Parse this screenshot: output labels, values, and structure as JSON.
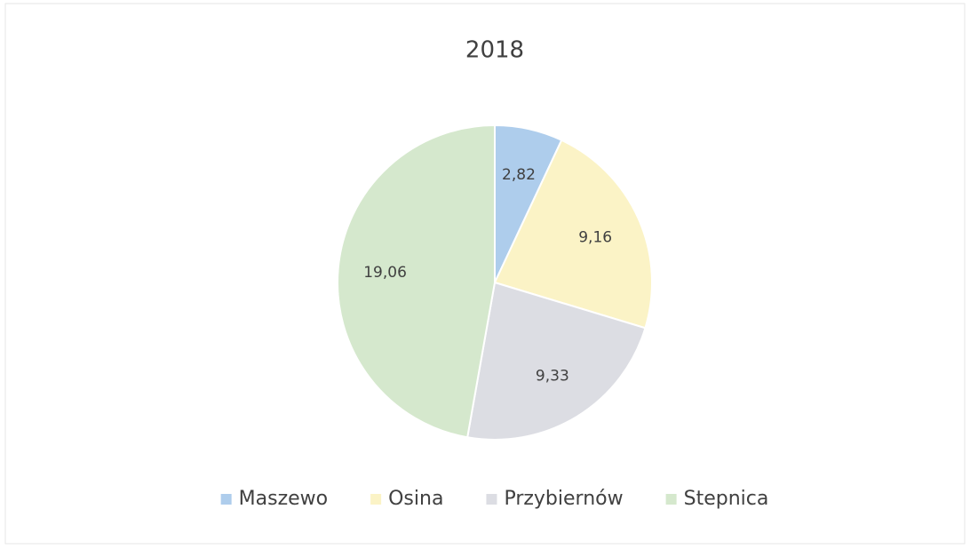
{
  "chart_data": {
    "type": "pie",
    "title": "2018",
    "categories": [
      "Maszewo",
      "Osina",
      "Przybiernów",
      "Stepnica"
    ],
    "values": [
      2.82,
      9.16,
      9.33,
      19.06
    ],
    "value_labels": [
      "2,82",
      "9,16",
      "9,33",
      "19,06"
    ],
    "colors": [
      "#aecdec",
      "#fbf3c6",
      "#dcdde3",
      "#d5e8cd"
    ],
    "legend": "bottom"
  }
}
